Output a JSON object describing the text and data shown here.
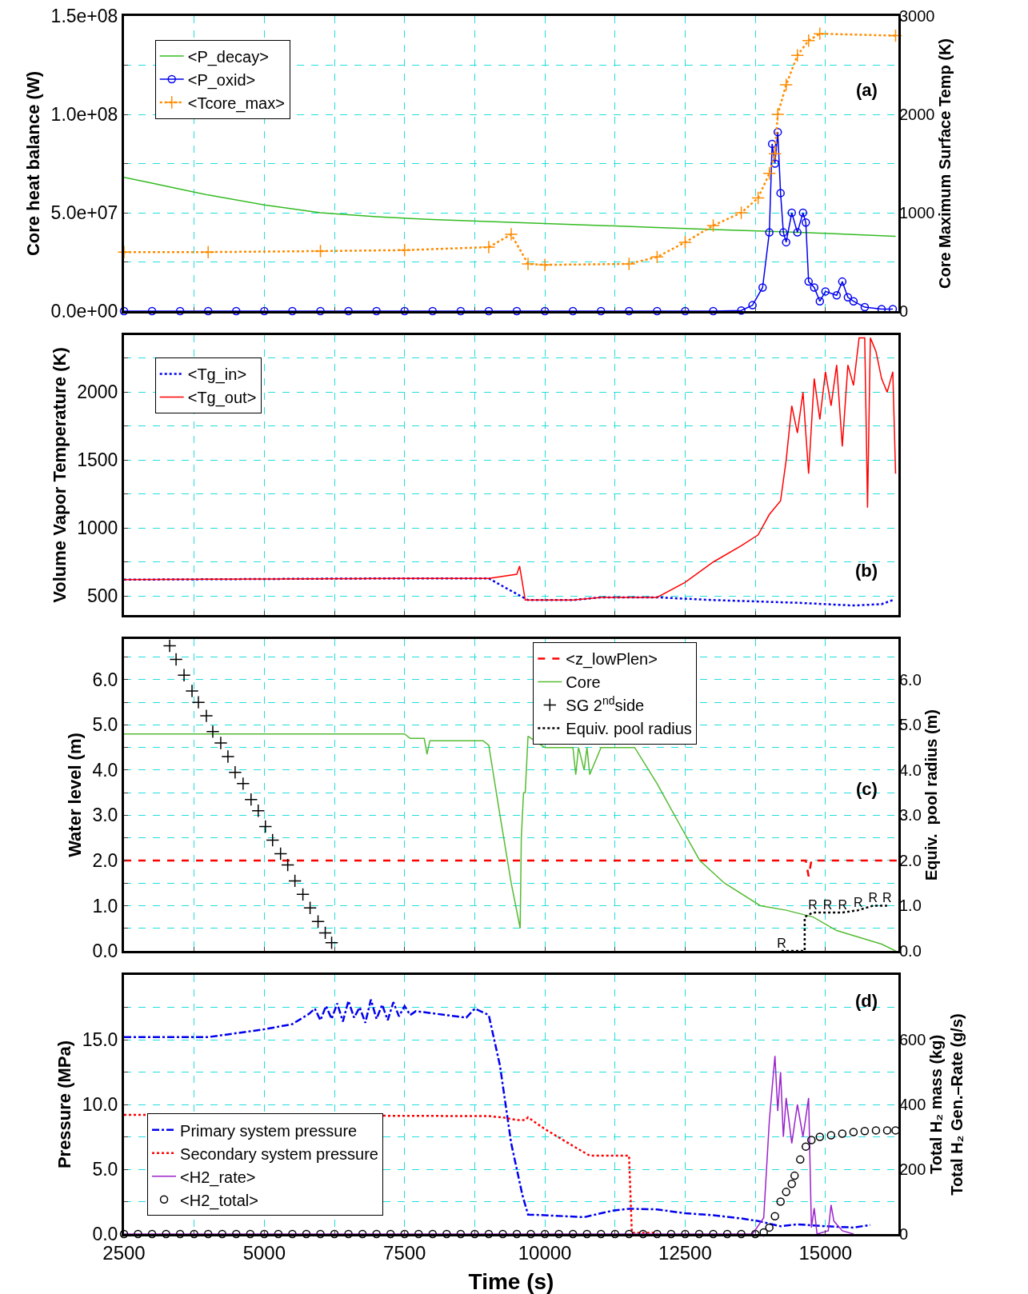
{
  "chart_data": [
    {
      "type": "line",
      "ylabel": "Core heat balance (W)",
      "y2label": "Core Maximum Surface Temp (K)",
      "annotations": [
        "(a)"
      ],
      "legend": "top left",
      "grid": true,
      "tick_labels": "y",
      "xlim": [
        2500,
        16300
      ],
      "xticks": [
        2500,
        {
          "value": 3750,
          "label": null
        },
        5000,
        {
          "value": 6250,
          "label": null
        },
        7500,
        {
          "value": 8750,
          "label": null
        },
        10000,
        {
          "value": 11250,
          "label": null
        },
        12500,
        {
          "value": 13750,
          "label": null
        },
        15000
      ],
      "ylim": [
        0,
        150000000
      ],
      "yticks": [
        {
          "value": 0,
          "label": "0.0e+00"
        },
        {
          "value": 25000000,
          "label": null
        },
        {
          "value": 50000000,
          "label": "5.0e+07"
        },
        {
          "value": 75000000,
          "label": null
        },
        {
          "value": 100000000,
          "label": "1.0e+08"
        },
        {
          "value": 125000000,
          "label": null
        },
        {
          "value": 150000000,
          "label": "1.5e+08"
        }
      ],
      "y2lim": [
        0,
        3000
      ],
      "y2ticks": [
        0,
        1000,
        2000,
        3000
      ],
      "series": [
        {
          "name": "<P_decay>",
          "color": "#33bb22",
          "marker": "none",
          "line_style": "solid",
          "x": [
            2500,
            3000,
            3500,
            4000,
            5000,
            6000,
            7000,
            8000,
            9000,
            10000,
            11000,
            12000,
            13000,
            14000,
            15000,
            16250
          ],
          "values": [
            68000000,
            65000000,
            62000000,
            59000000,
            54000000,
            50000000,
            48000000,
            46500000,
            45500000,
            44500000,
            43500000,
            42500000,
            41500000,
            40500000,
            39500000,
            38000000
          ]
        },
        {
          "name": "<P_oxid>",
          "color": "#0000ee",
          "marker": "circle",
          "line_style": "solid",
          "x": [
            2500,
            3000,
            3500,
            4000,
            4500,
            5000,
            5500,
            6000,
            6500,
            7000,
            7500,
            8000,
            8500,
            9000,
            9500,
            10000,
            10500,
            11000,
            11500,
            12000,
            12500,
            13000,
            13500,
            13700,
            13880,
            14000,
            14050,
            14100,
            14150,
            14200,
            14250,
            14300,
            14400,
            14500,
            14600,
            14650,
            14700,
            14800,
            14900,
            15000,
            15200,
            15300,
            15400,
            15500,
            15700,
            16000,
            16200
          ],
          "values": [
            0,
            0,
            0,
            0,
            0,
            0,
            0,
            0,
            0,
            0,
            0,
            0,
            0,
            0,
            0,
            0,
            0,
            0,
            0,
            0,
            0,
            0,
            300000,
            3000000,
            12000000,
            40000000,
            85000000,
            75000000,
            91000000,
            60000000,
            40000000,
            35000000,
            50000000,
            40000000,
            50000000,
            45000000,
            15000000,
            12000000,
            5000000,
            10000000,
            8000000,
            15000000,
            7000000,
            5000000,
            2000000,
            1000000,
            1000000
          ]
        },
        {
          "name": "<Tcore_max>",
          "color": "#ff8c00",
          "marker": "cross",
          "line_style": "dotted",
          "axis": "y2",
          "x": [
            2500,
            4000,
            6000,
            7500,
            9000,
            9400,
            9700,
            10000,
            11500,
            12000,
            12500,
            13000,
            13500,
            13800,
            14000,
            14100,
            14150,
            14300,
            14500,
            14700,
            14900,
            16250
          ],
          "values": [
            600,
            600,
            610,
            620,
            650,
            780,
            480,
            470,
            480,
            550,
            700,
            870,
            1000,
            1150,
            1400,
            1600,
            2000,
            2300,
            2600,
            2750,
            2820,
            2800
          ]
        }
      ]
    },
    {
      "type": "line",
      "ylabel": "Volume Vapor Temperature (K)",
      "annotations": [
        "(b)"
      ],
      "legend": "top left",
      "grid": true,
      "tick_labels": "y",
      "xlim": [
        2500,
        16300
      ],
      "xticks": [
        2500,
        {
          "value": 3750,
          "label": null
        },
        5000,
        {
          "value": 6250,
          "label": null
        },
        7500,
        {
          "value": 8750,
          "label": null
        },
        10000,
        {
          "value": 11250,
          "label": null
        },
        12500,
        {
          "value": 13750,
          "label": null
        },
        15000
      ],
      "ylim": [
        360,
        2420
      ],
      "yticks": [
        500,
        {
          "value": 750,
          "label": null
        },
        1000,
        {
          "value": 1250,
          "label": null
        },
        1500,
        {
          "value": 1750,
          "label": null
        },
        2000,
        {
          "value": 2250,
          "label": null
        }
      ],
      "series": [
        {
          "name": "<Tg_in>",
          "color": "#0000ee",
          "marker": "none",
          "line_style": "dotted",
          "x": [
            2500,
            5000,
            7500,
            9000,
            9300,
            9700,
            10500,
            11000,
            12000,
            13000,
            14500,
            15500,
            16000,
            16200
          ],
          "values": [
            620,
            625,
            630,
            630,
            560,
            470,
            470,
            490,
            490,
            470,
            450,
            430,
            440,
            470
          ]
        },
        {
          "name": "<Tg_out>",
          "color": "#ff0000",
          "marker": "none",
          "line_style": "solid",
          "x": [
            2500,
            5000,
            7500,
            9000,
            9500,
            9550,
            9650,
            10500,
            11000,
            12000,
            12500,
            13000,
            13500,
            13800,
            14000,
            14200,
            14300,
            14400,
            14500,
            14600,
            14700,
            14800,
            14900,
            15000,
            15100,
            15200,
            15300,
            15400,
            15500,
            15600,
            15700,
            15750,
            15800,
            15900,
            16000,
            16100,
            16200,
            16250
          ],
          "values": [
            620,
            625,
            630,
            630,
            660,
            720,
            470,
            470,
            490,
            490,
            600,
            750,
            870,
            950,
            1100,
            1200,
            1500,
            1900,
            1700,
            2000,
            1400,
            2100,
            1800,
            2150,
            1900,
            2200,
            1600,
            2200,
            2050,
            2400,
            2400,
            1150,
            2400,
            2300,
            2100,
            2000,
            2150,
            1400
          ]
        }
      ]
    },
    {
      "type": "line",
      "ylabel": "Water level (m)",
      "y2label": "Equiv.  pool radius (m)",
      "annotations": [
        "(c)"
      ],
      "legend": "top right",
      "grid": true,
      "tick_labels": "y",
      "xlim": [
        2500,
        16300
      ],
      "xticks": [
        2500,
        {
          "value": 3750,
          "label": null
        },
        5000,
        {
          "value": 6250,
          "label": null
        },
        7500,
        {
          "value": 8750,
          "label": null
        },
        10000,
        {
          "value": 11250,
          "label": null
        },
        12500,
        {
          "value": 13750,
          "label": null
        },
        15000
      ],
      "ylim": [
        0,
        6.9
      ],
      "yticks": [
        {
          "value": 0,
          "label": "0.0"
        },
        {
          "value": 0.5,
          "label": null
        },
        {
          "value": 1,
          "label": "1.0"
        },
        {
          "value": 1.5,
          "label": null
        },
        {
          "value": 2,
          "label": "2.0"
        },
        {
          "value": 2.5,
          "label": null
        },
        {
          "value": 3,
          "label": "3.0"
        },
        {
          "value": 3.5,
          "label": null
        },
        {
          "value": 4,
          "label": "4.0"
        },
        {
          "value": 4.5,
          "label": null
        },
        {
          "value": 5,
          "label": "5.0"
        },
        {
          "value": 5.5,
          "label": null
        },
        {
          "value": 6,
          "label": "6.0"
        },
        {
          "value": 6.5,
          "label": null
        }
      ],
      "y2lim": [
        0,
        6.9
      ],
      "y2ticks": [
        {
          "value": 0,
          "label": "0.0"
        },
        {
          "value": 1,
          "label": "1.0"
        },
        {
          "value": 2,
          "label": "2.0"
        },
        {
          "value": 3,
          "label": "3.0"
        },
        {
          "value": 4,
          "label": "4.0"
        },
        {
          "value": 5,
          "label": "5.0"
        },
        {
          "value": 6,
          "label": "6.0"
        }
      ],
      "series": [
        {
          "name": "<z_lowPlen>",
          "color": "#ff0000",
          "marker": "none",
          "line_style": "dashed",
          "x": [
            2500,
            14600,
            14650,
            14700,
            14750,
            14800,
            16300
          ],
          "values": [
            2,
            2,
            2,
            1.65,
            2,
            2,
            2
          ]
        },
        {
          "name": "Core",
          "color": "#55bb33",
          "marker": "none",
          "line_style": "solid",
          "x": [
            2500,
            7500,
            7600,
            7850,
            7900,
            7950,
            8000,
            8900,
            9000,
            9200,
            9400,
            9560,
            9580,
            9620,
            9650,
            9700,
            9760,
            10000,
            10500,
            10550,
            10600,
            10700,
            10750,
            10800,
            11000,
            11600,
            12000,
            12400,
            12760,
            13200,
            13840,
            14300,
            14780,
            15200,
            15600,
            16000,
            16250
          ],
          "values": [
            4.8,
            4.8,
            4.7,
            4.7,
            4.35,
            4.65,
            4.65,
            4.65,
            4.55,
            3.0,
            1.5,
            0.5,
            2.5,
            3.5,
            3.5,
            4.75,
            4.7,
            4.5,
            4.5,
            3.9,
            4.5,
            4.0,
            4.5,
            3.9,
            4.5,
            4.5,
            3.7,
            2.8,
            2.0,
            1.5,
            1.0,
            0.9,
            0.75,
            0.45,
            0.3,
            0.15,
            0.0
          ]
        },
        {
          "name": "SG 2$^{nd}$side",
          "type": "scatter",
          "color": "#000000",
          "marker": "cross",
          "x": [
            3314,
            3428,
            3570,
            3712,
            3826,
            3968,
            4082,
            4224,
            4352,
            4480,
            4622,
            4764,
            4892,
            5020,
            5148,
            5290,
            5418,
            5546,
            5688,
            5816,
            5958,
            6086,
            6200
          ],
          "values": [
            6.75,
            6.45,
            6.1,
            5.75,
            5.5,
            5.2,
            4.85,
            4.6,
            4.3,
            3.95,
            3.7,
            3.35,
            3.1,
            2.75,
            2.45,
            2.15,
            1.9,
            1.55,
            1.25,
            0.95,
            0.65,
            0.4,
            0.18
          ]
        },
        {
          "name": "Equiv. pool radius",
          "color": "#000000",
          "marker": "none",
          "line_style": "dotted",
          "axis": "y2",
          "x": [
            14218,
            14630,
            14630,
            14776,
            15040,
            15305,
            15584,
            15848,
            16098
          ],
          "values": [
            0,
            0,
            0.75,
            0.85,
            0.85,
            0.85,
            0.9,
            1.0,
            1.0
          ],
          "value_labels": [
            "R",
            null,
            null,
            "R",
            "R",
            "R",
            "R",
            "R",
            "R"
          ]
        }
      ]
    },
    {
      "type": "line",
      "xlabel": "Time (s)",
      "ylabel": "Pressure (MPa)",
      "y2label": "Total H₂ mass (kg)\nTotal H₂ Gen.–Rate (g/s)",
      "annotations": [
        "(d)"
      ],
      "legend": "bottom left",
      "grid": true,
      "xlim": [
        2500,
        16300
      ],
      "xticks": [
        2500,
        {
          "value": 3750,
          "label": null
        },
        5000,
        {
          "value": 6250,
          "label": null
        },
        7500,
        {
          "value": 8750,
          "label": null
        },
        10000,
        {
          "value": 11250,
          "label": null
        },
        12500,
        {
          "value": 13750,
          "label": null
        },
        15000
      ],
      "ylim": [
        0,
        20
      ],
      "yticks": [
        {
          "value": 0,
          "label": "0.0"
        },
        {
          "value": 2.5,
          "label": null
        },
        {
          "value": 5,
          "label": "5.0"
        },
        {
          "value": 7.5,
          "label": null
        },
        {
          "value": 10,
          "label": "10.0"
        },
        {
          "value": 12.5,
          "label": null
        },
        {
          "value": 15,
          "label": "15.0"
        },
        {
          "value": 17.5,
          "label": null
        }
      ],
      "y2lim": [
        0,
        800
      ],
      "y2ticks": [
        0,
        200,
        400,
        600
      ],
      "series": [
        {
          "name": "Primary system pressure",
          "color": "#0000ee",
          "marker": "none",
          "line_style": "dashdot",
          "x": [
            2500,
            4000,
            5000,
            5500,
            5800,
            5900,
            6000,
            6100,
            6200,
            6300,
            6400,
            6500,
            6600,
            6700,
            6800,
            6900,
            7000,
            7100,
            7200,
            7300,
            7400,
            7500,
            7600,
            7700,
            8600,
            8750,
            9000,
            9200,
            9400,
            9600,
            9700,
            10000,
            10700,
            11200,
            11500,
            12000,
            12500,
            13000,
            13500,
            13800,
            14200,
            14500,
            15000,
            15500,
            15800
          ],
          "values": [
            15.2,
            15.2,
            15.8,
            16.2,
            17.0,
            17.4,
            16.5,
            17.6,
            16.6,
            17.8,
            16.4,
            18.0,
            16.7,
            17.5,
            16.3,
            18.1,
            16.6,
            17.7,
            16.5,
            17.9,
            16.8,
            17.6,
            16.9,
            17.2,
            16.7,
            17.4,
            16.9,
            13,
            7,
            3,
            1.5,
            1.45,
            1.3,
            1.8,
            1.95,
            1.9,
            1.6,
            1.45,
            1.2,
            1.0,
            0.6,
            0.75,
            0.6,
            0.5,
            0.7
          ]
        },
        {
          "name": "Secondary system pressure",
          "color": "#ff0000",
          "marker": "none",
          "line_style": "dotted",
          "x": [
            2500,
            9000,
            9250,
            9500,
            9650,
            9700,
            10000,
            10500,
            10800,
            11500,
            11550,
            11600,
            12000
          ],
          "values": [
            9.2,
            9.1,
            9.0,
            8.8,
            8.8,
            9.0,
            8.1,
            6.8,
            6.05,
            6.05,
            0.1,
            0.1,
            0.1
          ]
        },
        {
          "name": "<H2_rate>",
          "color": "#9922cc",
          "marker": "none",
          "line_style": "solid",
          "axis": "y2",
          "x": [
            2500,
            13700,
            13900,
            14000,
            14100,
            14150,
            14200,
            14250,
            14300,
            14400,
            14500,
            14600,
            14700,
            14750,
            14800,
            14850,
            15050,
            15100,
            15150,
            15300,
            15500
          ],
          "values": [
            0,
            0,
            50,
            350,
            550,
            380,
            500,
            300,
            420,
            280,
            400,
            300,
            420,
            20,
            80,
            0,
            10,
            90,
            40,
            10,
            0
          ]
        },
        {
          "name": "<H2_total>",
          "type": "scatter",
          "color": "#000000",
          "marker": "circle",
          "axis": "y2",
          "x": [
            2500,
            2750,
            3000,
            3250,
            3500,
            3750,
            4000,
            4250,
            4500,
            4750,
            5000,
            5250,
            5500,
            5750,
            6000,
            6250,
            6500,
            6750,
            7000,
            7250,
            7500,
            7750,
            8000,
            8250,
            8500,
            8750,
            9000,
            9250,
            9500,
            9750,
            10000,
            10250,
            10500,
            10750,
            11000,
            11250,
            11500,
            11750,
            12000,
            12250,
            12500,
            12750,
            13000,
            13250,
            13500,
            13750,
            13900,
            14000,
            14100,
            14200,
            14300,
            14400,
            14450,
            14550,
            14650,
            14750,
            14900,
            15100,
            15300,
            15500,
            15700,
            15900,
            16100,
            16250
          ],
          "values": [
            0,
            0,
            0,
            0,
            0,
            0,
            0,
            0,
            0,
            0,
            0,
            0,
            0,
            0,
            0,
            0,
            0,
            0,
            0,
            0,
            0,
            0,
            0,
            0,
            0,
            0,
            0,
            0,
            0,
            0,
            0,
            0,
            0,
            0,
            0,
            0,
            0,
            0,
            0,
            0,
            0,
            0,
            0,
            0,
            0,
            0,
            5,
            20,
            55,
            100,
            130,
            155,
            180,
            230,
            270,
            290,
            300,
            305,
            310,
            315,
            318,
            320,
            320,
            320
          ]
        }
      ]
    }
  ]
}
